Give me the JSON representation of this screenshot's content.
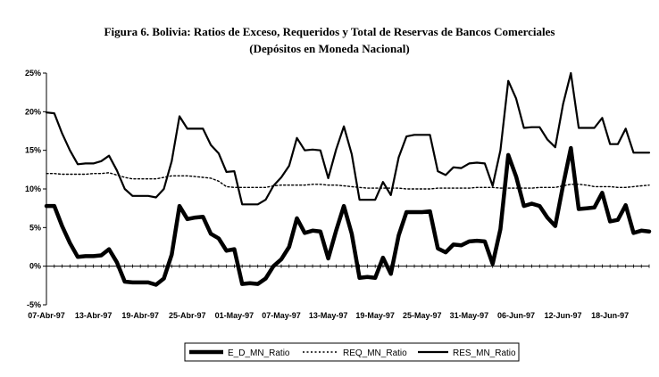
{
  "chart_data": {
    "type": "line",
    "title": "Figura 6. Bolivia: Ratios de Exceso, Requeridos y Total de Reservas de Bancos Comerciales",
    "subtitle": "(Depósitos en Moneda Nacional)",
    "xlabel": "",
    "ylabel": "",
    "ylim": [
      -5,
      25
    ],
    "yticks": [
      "-5%",
      "0%",
      "5%",
      "10%",
      "15%",
      "20%",
      "25%"
    ],
    "ytick_values": [
      -5,
      0,
      5,
      10,
      15,
      20,
      25
    ],
    "xticks": [
      "07-Abr-97",
      "13-Abr-97",
      "19-Abr-97",
      "25-Abr-97",
      "01-May-97",
      "07-May-97",
      "13-May-97",
      "19-May-97",
      "25-May-97",
      "31-May-97",
      "06-Jun-97",
      "12-Jun-97",
      "18-Jun-97"
    ],
    "n_points": 78,
    "grid": false,
    "legend_position": "bottom-center",
    "series": [
      {
        "name": "E_D_MN_Ratio",
        "style": "solid-thick",
        "values": [
          7.8,
          7.8,
          5.2,
          3.0,
          1.2,
          1.3,
          1.3,
          1.4,
          2.2,
          0.5,
          -2.0,
          -2.1,
          -2.1,
          -2.1,
          -2.4,
          -1.6,
          1.5,
          7.8,
          6.1,
          6.3,
          6.4,
          4.2,
          3.6,
          2.0,
          2.2,
          -2.3,
          -2.2,
          -2.3,
          -1.6,
          0.0,
          0.9,
          2.5,
          6.2,
          4.3,
          4.6,
          4.5,
          1.0,
          4.6,
          7.8,
          4.2,
          -1.5,
          -1.4,
          -1.5,
          1.1,
          -1.0,
          4.0,
          7.0,
          7.0,
          7.0,
          7.1,
          2.3,
          1.8,
          2.8,
          2.7,
          3.2,
          3.3,
          3.2,
          0.3,
          4.8,
          14.4,
          11.6,
          7.8,
          8.1,
          7.8,
          6.3,
          5.2,
          10.5,
          15.3,
          7.4,
          7.5,
          7.6,
          9.5,
          5.8,
          6.0,
          7.9,
          4.3,
          4.6,
          4.5
        ]
      },
      {
        "name": "REQ_MN_Ratio",
        "style": "dotted",
        "values": [
          12.0,
          12.0,
          11.9,
          11.9,
          11.9,
          11.9,
          12.0,
          12.0,
          12.1,
          11.8,
          11.5,
          11.3,
          11.3,
          11.3,
          11.3,
          11.5,
          11.7,
          11.7,
          11.7,
          11.6,
          11.5,
          11.4,
          11.0,
          10.3,
          10.2,
          10.2,
          10.2,
          10.2,
          10.2,
          10.4,
          10.5,
          10.5,
          10.5,
          10.5,
          10.6,
          10.6,
          10.5,
          10.5,
          10.4,
          10.3,
          10.2,
          10.1,
          10.1,
          10.1,
          10.1,
          10.1,
          10.0,
          10.0,
          10.0,
          10.0,
          10.1,
          10.1,
          10.1,
          10.1,
          10.1,
          10.2,
          10.2,
          10.2,
          10.1,
          10.1,
          10.1,
          10.1,
          10.1,
          10.2,
          10.2,
          10.2,
          10.4,
          10.6,
          10.6,
          10.5,
          10.3,
          10.3,
          10.3,
          10.2,
          10.2,
          10.3,
          10.4,
          10.5
        ]
      },
      {
        "name": "RES_MN_Ratio",
        "style": "solid",
        "values": [
          19.9,
          19.8,
          17.2,
          15.0,
          13.2,
          13.3,
          13.3,
          13.6,
          14.3,
          12.4,
          10.0,
          9.1,
          9.1,
          9.1,
          8.9,
          10.0,
          13.6,
          19.4,
          17.8,
          17.8,
          17.8,
          15.7,
          14.6,
          12.2,
          12.3,
          8.0,
          8.0,
          8.0,
          8.6,
          10.4,
          11.5,
          13.0,
          16.6,
          15.0,
          15.1,
          15.0,
          11.4,
          15.1,
          18.1,
          14.5,
          8.6,
          8.6,
          8.6,
          10.9,
          9.2,
          14.1,
          16.8,
          17.0,
          17.0,
          17.0,
          12.3,
          11.8,
          12.8,
          12.7,
          13.3,
          13.4,
          13.3,
          10.4,
          15.0,
          24.0,
          21.7,
          17.9,
          18.0,
          18.0,
          16.4,
          15.4,
          21.0,
          25.0,
          17.9,
          17.9,
          17.9,
          19.2,
          15.8,
          15.8,
          17.8,
          14.7,
          14.7,
          14.7
        ]
      }
    ]
  }
}
